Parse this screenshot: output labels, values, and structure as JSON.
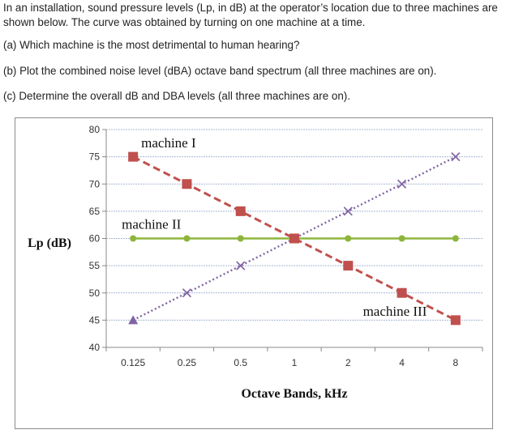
{
  "question": {
    "intro": "In an installation, sound pressure levels (Lp, in dB) at the operator’s location due to three machines are shown below. The curve was obtained by turning on one machine at a time.",
    "part_a": "(a) Which machine is the most detrimental to human hearing?",
    "part_b": "(b) Plot the combined noise level (dBA) octave band spectrum (all three machines are on).",
    "part_c": "(c) Determine the overall dB and DBA levels (all three machines are on)."
  },
  "chart_data": {
    "type": "line",
    "title": "",
    "xlabel": "Octave Bands, kHz",
    "ylabel": "Lp (dB)",
    "categories": [
      "0.125",
      "0.25",
      "0.5",
      "1",
      "2",
      "4",
      "8"
    ],
    "ylim": [
      40,
      80
    ],
    "yticks": [
      40,
      45,
      50,
      55,
      60,
      65,
      70,
      75,
      80
    ],
    "grid": true,
    "series": [
      {
        "name": "machine I",
        "values": [
          75,
          70,
          65,
          60,
          55,
          50,
          45
        ],
        "color": "#c0504d",
        "marker": "square",
        "line": "dashed"
      },
      {
        "name": "machine II",
        "values": [
          60,
          60,
          60,
          60,
          60,
          60,
          60
        ],
        "color": "#8db53c",
        "marker": "circle",
        "line": "solid"
      },
      {
        "name": "machine III",
        "values": [
          45,
          50,
          55,
          60,
          65,
          70,
          75
        ],
        "color": "#8064a2",
        "marker": "x",
        "line": "dotted"
      }
    ],
    "annotations": [
      "machine I",
      "machine II",
      "machine III"
    ]
  }
}
